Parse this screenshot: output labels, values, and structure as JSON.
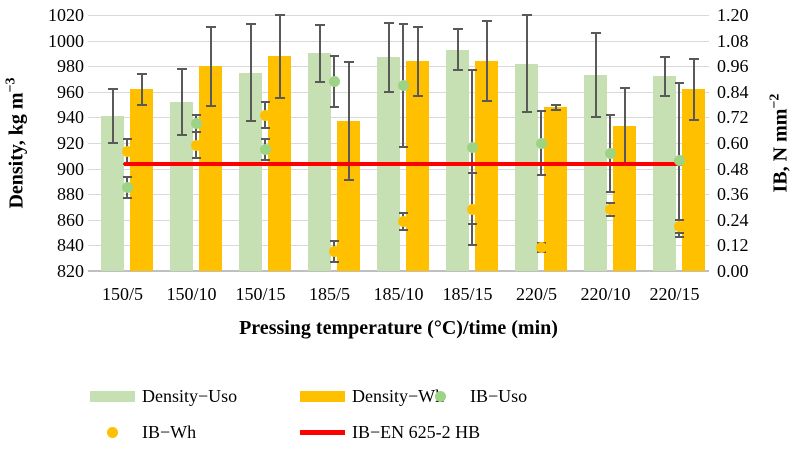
{
  "chart_data": {
    "type": "bar",
    "categories": [
      "150/5",
      "150/10",
      "150/15",
      "185/5",
      "185/10",
      "185/15",
      "220/5",
      "220/10",
      "220/15"
    ],
    "series": [
      {
        "name": "Density−Uso",
        "type": "bar",
        "axis": "left",
        "color": "#c6e0b4",
        "values": [
          941,
          952,
          975,
          990,
          987,
          993,
          982,
          973,
          972
        ],
        "errors": [
          21,
          26,
          38,
          22,
          27,
          16,
          38,
          33,
          15
        ]
      },
      {
        "name": "Density−Wh",
        "type": "bar",
        "axis": "left",
        "color": "#ffc000",
        "values": [
          962,
          980,
          988,
          937,
          984,
          984,
          948,
          933,
          962
        ],
        "errors": [
          12,
          31,
          33,
          46,
          27,
          31,
          2,
          30,
          24
        ]
      },
      {
        "name": "IB−Uso",
        "type": "scatter",
        "axis": "right",
        "color": "#9dd385",
        "values": [
          0.39,
          0.69,
          0.57,
          0.89,
          0.87,
          0.58,
          0.6,
          0.55,
          0.52
        ],
        "errors": [
          0.05,
          0.04,
          0.05,
          0.12,
          0.29,
          0.36,
          0.15,
          0.18,
          0.36
        ]
      },
      {
        "name": "IB−Wh",
        "type": "scatter",
        "axis": "right",
        "color": "#ffc000",
        "values": [
          0.56,
          0.59,
          0.73,
          0.09,
          0.23,
          0.29,
          0.11,
          0.29,
          0.21
        ],
        "errors": [
          0.06,
          0.06,
          0.06,
          0.05,
          0.04,
          0.17,
          0.02,
          0.03,
          0.03
        ]
      },
      {
        "name": "IB−EN 625-2 HB",
        "type": "line",
        "axis": "right",
        "color": "#ff0000",
        "value": 0.5
      }
    ],
    "left_axis": {
      "title": "Density, kg m",
      "title_sup": "−3",
      "min": 820,
      "max": 1020,
      "step": 20,
      "ticks": [
        "1020",
        "1000",
        "980",
        "960",
        "940",
        "920",
        "900",
        "880",
        "860",
        "840",
        "820"
      ]
    },
    "right_axis": {
      "title": "IB, N mm",
      "title_sup": "−2",
      "min": 0,
      "max": 1.2,
      "step": 0.12,
      "ticks": [
        "1.20",
        "1.08",
        "0.96",
        "0.84",
        "0.72",
        "0.60",
        "0.48",
        "0.36",
        "0.24",
        "0.12",
        "0.00"
      ]
    },
    "xlabel": "Pressing temperature (°C)/time (min)",
    "grid": true,
    "legend_position": "bottom",
    "error_bar_color": "#595959",
    "gridline_color": "#d9d9d9"
  }
}
